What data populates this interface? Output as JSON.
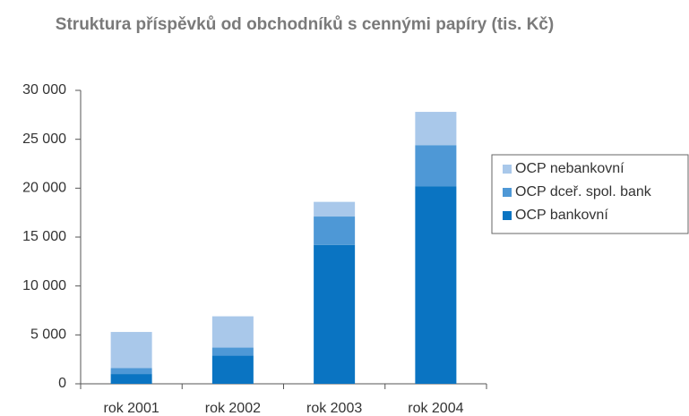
{
  "chart_data": {
    "type": "bar",
    "stacked": true,
    "title": "Struktura příspěvků od obchodníků s cennými papíry (tis. Kč)",
    "categories": [
      "rok 2001",
      "rok 2002",
      "rok 2003",
      "rok 2004"
    ],
    "series": [
      {
        "name": "OCP bankovní",
        "color": "#0a74c2",
        "values": [
          1000,
          2900,
          14200,
          20200
        ]
      },
      {
        "name": "OCP dceř. spol. bank",
        "color": "#4e98d6",
        "values": [
          600,
          800,
          2900,
          4200
        ]
      },
      {
        "name": "OCP nebankovní",
        "color": "#a9c8ea",
        "values": [
          3700,
          3200,
          1500,
          3400
        ]
      }
    ],
    "ylim": [
      0,
      30000
    ],
    "yticks": [
      0,
      {
        "value": 5000,
        "label": "5 000"
      },
      {
        "value": 10000,
        "label": "10 000"
      },
      {
        "value": 15000,
        "label": "15 000"
      },
      {
        "value": 20000,
        "label": "20 000"
      },
      {
        "value": 25000,
        "label": "25 000"
      },
      {
        "value": 30000,
        "label": "30 000"
      }
    ],
    "legend": "right"
  }
}
